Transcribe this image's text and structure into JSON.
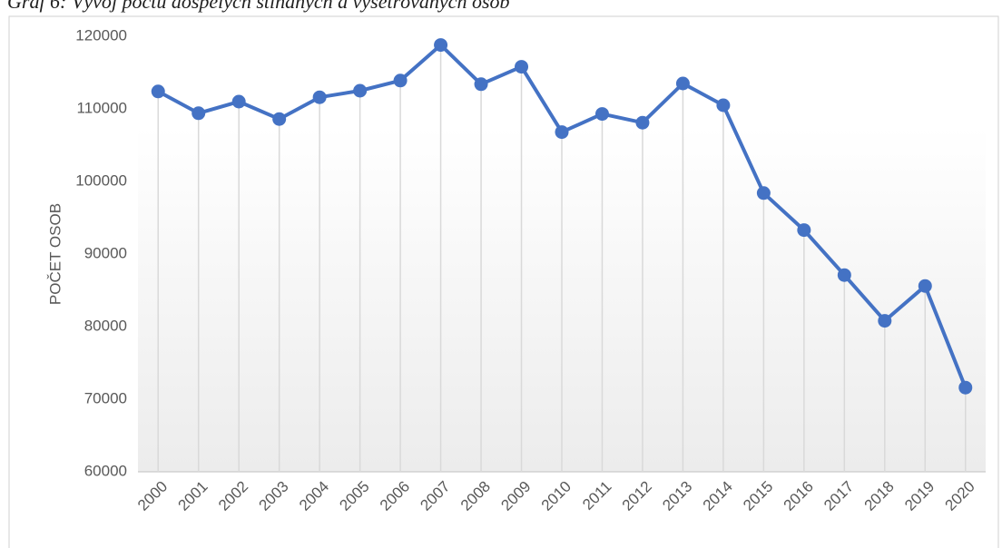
{
  "chart_data": {
    "type": "line",
    "title": "Graf 6: Vývoj počtu dospělých stíhaných a vyšetřovaných osob",
    "y_label": "POČET OSOB",
    "categories": [
      "2000",
      "2001",
      "2002",
      "2003",
      "2004",
      "2005",
      "2006",
      "2007",
      "2008",
      "2009",
      "2010",
      "2011",
      "2012",
      "2013",
      "2014",
      "2015",
      "2016",
      "2017",
      "2018",
      "2019",
      "2020"
    ],
    "series": [
      {
        "name": "POČET OSOB",
        "color": "#4472c4",
        "values": [
          112400,
          109400,
          111000,
          108600,
          111600,
          112500,
          113900,
          118800,
          113400,
          115800,
          106800,
          109300,
          108100,
          113500,
          110500,
          98400,
          93300,
          87100,
          80800,
          85600,
          71600
        ]
      }
    ],
    "ylim": [
      60000,
      120000
    ],
    "yticks": [
      60000,
      70000,
      80000,
      90000,
      100000,
      110000,
      120000
    ],
    "drop_lines": true
  }
}
